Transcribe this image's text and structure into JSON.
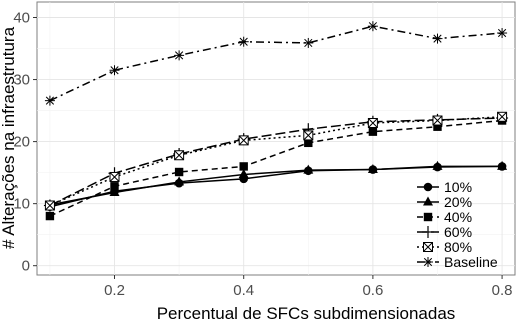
{
  "chart_data": {
    "type": "line",
    "xlabel": "Percentual de SFCs subdimensionadas",
    "ylabel": "# Alterações na infraestrutura",
    "xlim": [
      0.08,
      0.82
    ],
    "ylim": [
      -1.5,
      42.5
    ],
    "x_ticks": [
      "0.2",
      "0.4",
      "0.6",
      "0.8"
    ],
    "y_ticks": [
      "0",
      "10",
      "20",
      "30",
      "40"
    ],
    "x": [
      0.1,
      0.2,
      0.3,
      0.4,
      0.5,
      0.6,
      0.7,
      0.8
    ],
    "grid": true,
    "legend_position": "bottom-right",
    "series": [
      {
        "name": "10%",
        "marker": "circle",
        "dash": "solid",
        "values": [
          9.5,
          12.0,
          13.3,
          14.0,
          15.3,
          15.5,
          15.9,
          16.0
        ]
      },
      {
        "name": "20%",
        "marker": "triangle",
        "dash": "solid",
        "values": [
          9.8,
          11.8,
          13.5,
          14.7,
          15.4,
          15.5,
          16.0,
          16.0
        ]
      },
      {
        "name": "40%",
        "marker": "square",
        "dash": "dashed",
        "values": [
          8.0,
          12.8,
          15.1,
          16.0,
          19.8,
          21.6,
          22.4,
          23.4
        ]
      },
      {
        "name": "60%",
        "marker": "plus",
        "dash": "longdash",
        "values": [
          9.7,
          14.9,
          18.0,
          20.4,
          22.0,
          23.2,
          23.5,
          23.8
        ]
      },
      {
        "name": "80%",
        "marker": "boxcross",
        "dash": "dotted",
        "values": [
          9.7,
          14.3,
          17.8,
          20.2,
          21.0,
          23.0,
          23.4,
          24.0
        ]
      },
      {
        "name": "Baseline",
        "marker": "asterisk",
        "dash": "dotdash",
        "values": [
          26.6,
          31.5,
          33.9,
          36.1,
          35.9,
          38.6,
          36.6,
          37.5
        ]
      }
    ]
  }
}
